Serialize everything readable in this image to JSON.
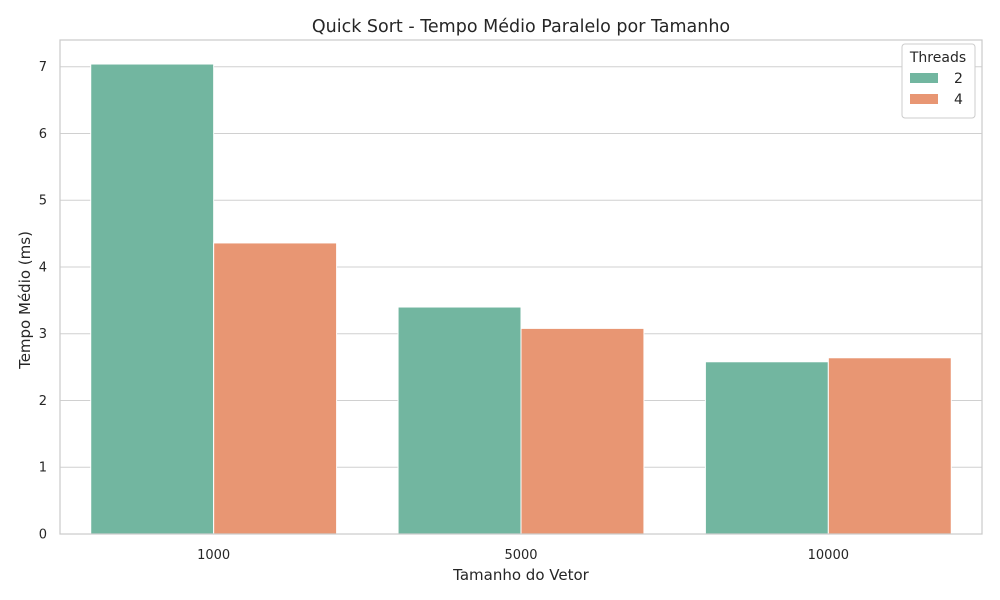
{
  "chart_data": {
    "type": "bar",
    "title": "Quick Sort - Tempo Médio Paralelo por Tamanho",
    "xlabel": "Tamanho do Vetor",
    "ylabel": "Tempo Médio (ms)",
    "categories": [
      "1000",
      "5000",
      "10000"
    ],
    "series": [
      {
        "name": "2",
        "values": [
          7.04,
          3.4,
          2.58
        ],
        "color": "#72b6a0"
      },
      {
        "name": "4",
        "values": [
          4.36,
          3.08,
          2.64
        ],
        "color": "#e89673"
      }
    ],
    "ylim": [
      0,
      7.4
    ],
    "yticks": [
      0,
      1,
      2,
      3,
      4,
      5,
      6,
      7
    ],
    "grid": true,
    "legend": {
      "title": "Threads",
      "placement": "top-right"
    },
    "colors": {
      "grid": "#d0d0d0",
      "frame": "#cccccc",
      "text": "#262626",
      "background": "#ffffff"
    }
  }
}
